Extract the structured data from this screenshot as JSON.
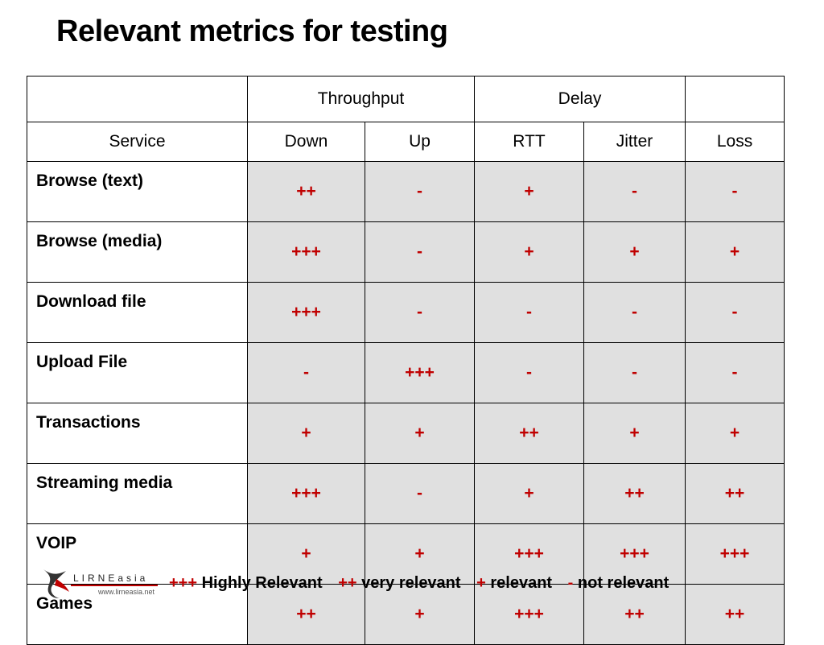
{
  "title": "Relevant metrics for testing",
  "table": {
    "group_headers": [
      "",
      "Throughput",
      "Delay",
      ""
    ],
    "column_headers": [
      "Service",
      "Down",
      "Up",
      "RTT",
      "Jitter",
      "Loss"
    ],
    "rows": [
      {
        "service": "Browse (text)",
        "values": [
          "++",
          "-",
          "+",
          "-",
          "-"
        ]
      },
      {
        "service": "Browse (media)",
        "values": [
          "+++",
          "-",
          "+",
          "+",
          "+"
        ]
      },
      {
        "service": "Download file",
        "values": [
          "+++",
          "-",
          "-",
          "-",
          "-"
        ]
      },
      {
        "service": "Upload File",
        "values": [
          "-",
          "+++",
          "-",
          "-",
          "-"
        ]
      },
      {
        "service": "Transactions",
        "values": [
          "+",
          "+",
          "++",
          "+",
          "+"
        ]
      },
      {
        "service": "Streaming media",
        "values": [
          "+++",
          "-",
          "+",
          "++",
          "++"
        ]
      },
      {
        "service": "VOIP",
        "values": [
          "+",
          "+",
          "+++",
          "+++",
          "+++"
        ]
      },
      {
        "service": "Games",
        "values": [
          "++",
          "+",
          "+++",
          "++",
          "++"
        ]
      }
    ]
  },
  "legend": {
    "items": [
      {
        "symbol": "+++",
        "label": "Highly Relevant"
      },
      {
        "symbol": "++",
        "label": "very relevant"
      },
      {
        "symbol": "+",
        "label": "relevant"
      },
      {
        "symbol": "-",
        "label": "not relevant"
      }
    ]
  },
  "logo": {
    "text": "LIRNEasia",
    "url": "www.lirneasia.net"
  },
  "colors": {
    "accent": "#c00000",
    "cell_background": "#e0e0e0"
  }
}
